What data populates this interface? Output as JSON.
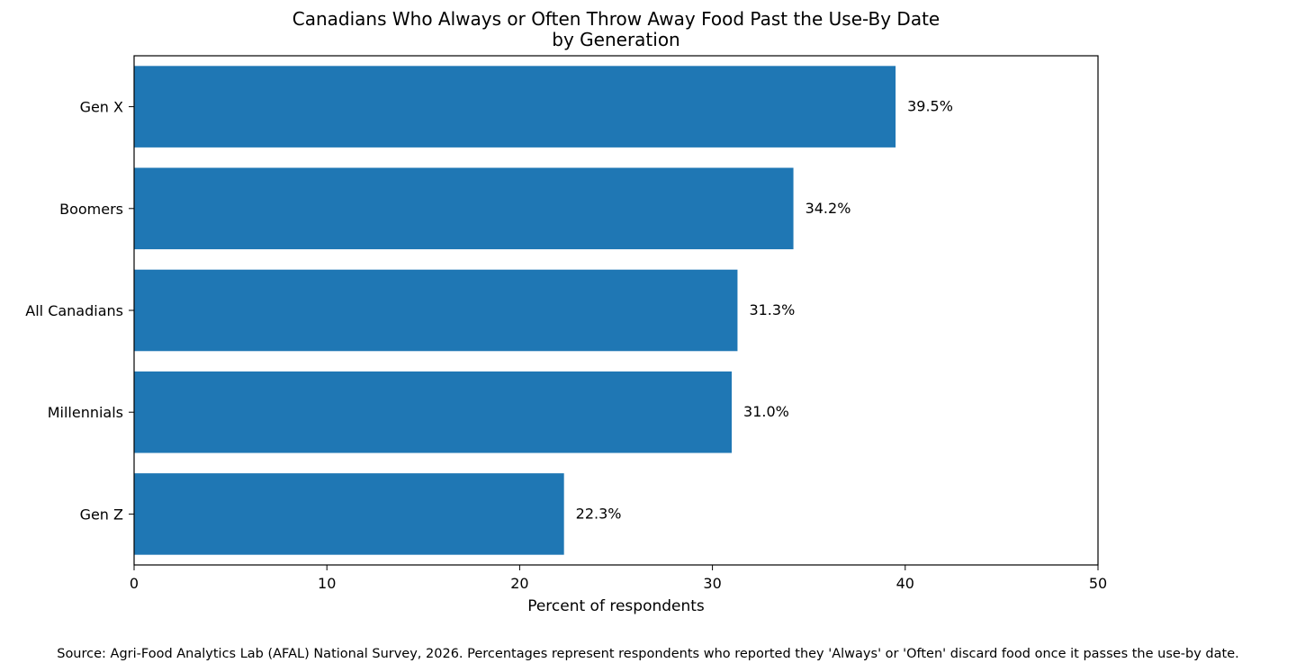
{
  "chart_data": {
    "type": "bar",
    "orientation": "horizontal",
    "title": [
      "Canadians Who Always or Often Throw Away Food Past the Use-By Date",
      "by Generation"
    ],
    "categories": [
      "Gen X",
      "Boomers",
      "All Canadians",
      "Millennials",
      "Gen Z"
    ],
    "values": [
      39.5,
      34.2,
      31.3,
      31.0,
      22.3
    ],
    "data_labels": [
      "39.5%",
      "34.2%",
      "31.3%",
      "31.0%",
      "22.3%"
    ],
    "xlabel": "Percent of respondents",
    "ylabel": "",
    "xlim": [
      0,
      50
    ],
    "xticks": [
      0,
      10,
      20,
      30,
      40,
      50
    ],
    "xtick_labels": [
      "0",
      "10",
      "20",
      "30",
      "40",
      "50"
    ],
    "grid": false,
    "bar_color": "#1f77b4"
  },
  "source_note": "Source: Agri-Food Analytics Lab (AFAL) National Survey, 2026. Percentages represent respondents who reported they 'Always' or 'Often' discard food once it passes the use-by date."
}
